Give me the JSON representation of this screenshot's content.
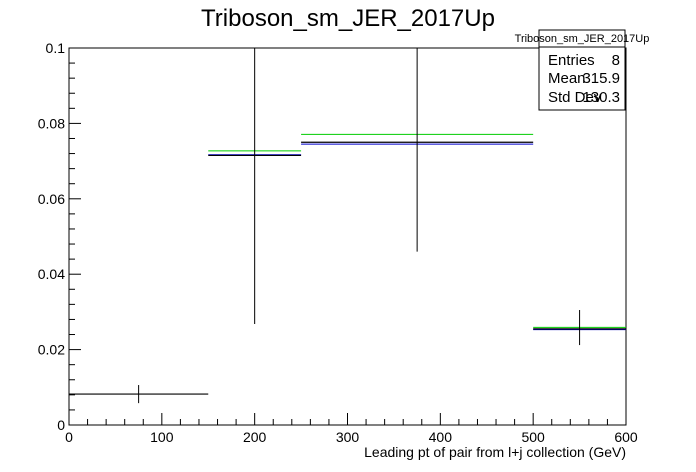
{
  "chart_data": {
    "type": "histogram",
    "title": "Triboson_sm_JER_2017Up",
    "xlabel": "Leading pt of pair from l+j collection (GeV)",
    "ylabel": "",
    "xlim": [
      0,
      600
    ],
    "ylim": [
      0,
      0.1
    ],
    "x_ticks": [
      "0",
      "100",
      "200",
      "300",
      "400",
      "500",
      "600"
    ],
    "y_ticks": [
      "0",
      "0.02",
      "0.04",
      "0.06",
      "0.08",
      "0.1"
    ],
    "grid": false,
    "series": [
      {
        "color": "#000000",
        "bins": [
          {
            "low": 0,
            "high": 150,
            "value": 0.0082,
            "err_low": 0.0058,
            "err_high": 0.0106
          },
          {
            "low": 150,
            "high": 250,
            "value": 0.0715,
            "err_low": 0.0268,
            "err_high": 0.1
          },
          {
            "low": 250,
            "high": 500,
            "value": 0.075,
            "err_low": 0.046,
            "err_high": 0.1
          },
          {
            "low": 500,
            "high": 600,
            "value": 0.0255,
            "err_low": 0.0212,
            "err_high": 0.0305
          }
        ]
      },
      {
        "color": "#00cc00",
        "bins": [
          {
            "low": 150,
            "high": 250,
            "value": 0.0727
          },
          {
            "low": 250,
            "high": 500,
            "value": 0.0771
          },
          {
            "low": 500,
            "high": 600,
            "value": 0.0259
          }
        ]
      },
      {
        "color": "#0000cc",
        "bins": [
          {
            "low": 150,
            "high": 250,
            "value": 0.0717
          },
          {
            "low": 250,
            "high": 500,
            "value": 0.0745
          },
          {
            "low": 500,
            "high": 600,
            "value": 0.0253
          }
        ]
      }
    ],
    "stats_box": {
      "title": "Triboson_sm_JER_2017Up",
      "rows": [
        {
          "label": "Entries",
          "value": "8"
        },
        {
          "label": "Mean",
          "value": "315.9"
        },
        {
          "label": "Std Dev",
          "value": "130.3"
        }
      ]
    }
  }
}
